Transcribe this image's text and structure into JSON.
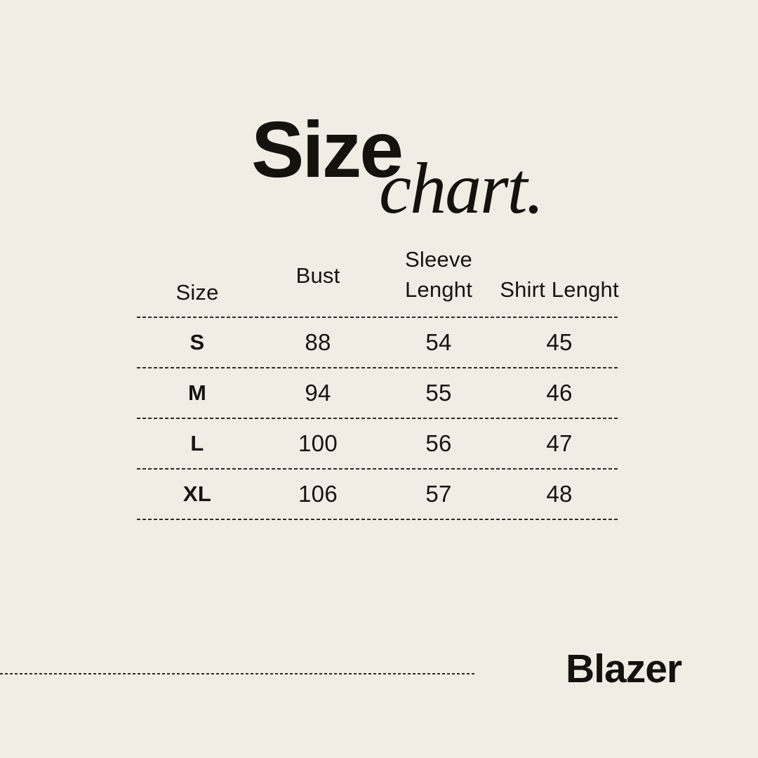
{
  "colors": {
    "background": "#f2ede4",
    "text": "#15110d",
    "divider": "#2e2a24"
  },
  "title": {
    "main": "Size",
    "script": "chart."
  },
  "footer": {
    "brand_label": "Blazer"
  },
  "chart_data": {
    "type": "table",
    "title": "Size chart.",
    "columns": [
      "Size",
      "Bust",
      "Sleeve Lenght",
      "Shirt Lenght"
    ],
    "rows": [
      [
        "S",
        "88",
        "54",
        "45"
      ],
      [
        "M",
        "94",
        "55",
        "46"
      ],
      [
        "L",
        "100",
        "56",
        "47"
      ],
      [
        "XL",
        "106",
        "57",
        "48"
      ]
    ],
    "product": "Blazer"
  }
}
